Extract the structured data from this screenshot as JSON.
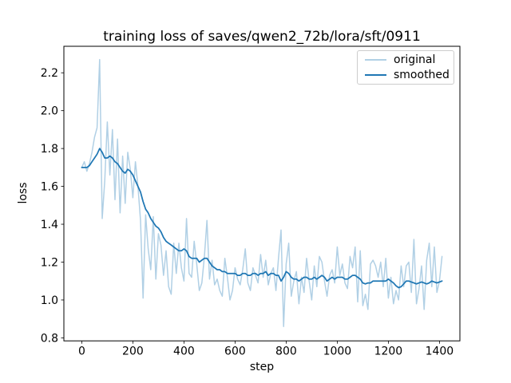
{
  "chart_data": {
    "type": "line",
    "title": "training loss of saves/qwen2_72b/lora/sft/0911",
    "xlabel": "step",
    "ylabel": "loss",
    "xlim": [
      -70,
      1480
    ],
    "ylim": [
      0.784,
      2.34
    ],
    "xticks": [
      0,
      200,
      400,
      600,
      800,
      1000,
      1200,
      1400
    ],
    "yticks": [
      0.8,
      1.0,
      1.2,
      1.4,
      1.6,
      1.8,
      2.0,
      2.2
    ],
    "grid": false,
    "legend_position": "upper right",
    "legend_border_color": "#cccccc",
    "axis_color": "#000000",
    "x": [
      0,
      10,
      20,
      30,
      40,
      50,
      60,
      70,
      80,
      90,
      100,
      110,
      120,
      130,
      140,
      150,
      160,
      170,
      180,
      190,
      200,
      210,
      220,
      230,
      240,
      250,
      260,
      270,
      280,
      290,
      300,
      310,
      320,
      330,
      340,
      350,
      360,
      370,
      380,
      390,
      400,
      410,
      420,
      430,
      440,
      450,
      460,
      470,
      480,
      490,
      500,
      510,
      520,
      530,
      540,
      550,
      560,
      570,
      580,
      590,
      600,
      610,
      620,
      630,
      640,
      650,
      660,
      670,
      680,
      690,
      700,
      710,
      720,
      730,
      740,
      750,
      760,
      770,
      780,
      790,
      800,
      810,
      820,
      830,
      840,
      850,
      860,
      870,
      880,
      890,
      900,
      910,
      920,
      930,
      940,
      950,
      960,
      970,
      980,
      990,
      1000,
      1010,
      1020,
      1030,
      1040,
      1050,
      1060,
      1070,
      1080,
      1090,
      1100,
      1110,
      1120,
      1130,
      1140,
      1150,
      1160,
      1170,
      1180,
      1190,
      1200,
      1210,
      1220,
      1230,
      1240,
      1250,
      1260,
      1270,
      1280,
      1290,
      1300,
      1310,
      1320,
      1330,
      1340,
      1350,
      1360,
      1370,
      1380,
      1390,
      1400,
      1410
    ],
    "series": [
      {
        "name": "original",
        "color": "#1f77b4",
        "alpha": 0.35,
        "linewidth": 1.5,
        "values": [
          1.7,
          1.73,
          1.68,
          1.72,
          1.78,
          1.86,
          1.91,
          2.27,
          1.43,
          1.63,
          1.94,
          1.66,
          1.9,
          1.53,
          1.85,
          1.46,
          1.76,
          1.51,
          1.78,
          1.69,
          1.54,
          1.73,
          1.6,
          1.42,
          1.01,
          1.45,
          1.27,
          1.16,
          1.44,
          1.11,
          1.35,
          1.29,
          1.13,
          1.26,
          1.07,
          1.03,
          1.3,
          1.14,
          1.3,
          1.17,
          1.1,
          1.43,
          1.14,
          1.12,
          1.31,
          1.19,
          1.05,
          1.09,
          1.23,
          1.42,
          1.11,
          1.21,
          1.08,
          1.11,
          1.05,
          1.02,
          1.22,
          1.12,
          1.0,
          1.05,
          1.17,
          1.11,
          1.08,
          1.16,
          1.27,
          1.09,
          1.05,
          1.17,
          1.13,
          1.09,
          1.24,
          1.12,
          1.21,
          1.08,
          1.14,
          1.17,
          1.05,
          1.22,
          1.37,
          0.86,
          1.19,
          1.3,
          1.02,
          1.1,
          1.15,
          0.98,
          1.12,
          1.04,
          1.22,
          1.1,
          1.0,
          1.18,
          1.07,
          1.23,
          1.2,
          1.1,
          1.02,
          1.13,
          1.16,
          1.09,
          1.28,
          1.13,
          1.19,
          1.09,
          1.06,
          1.23,
          1.17,
          1.28,
          0.99,
          1.26,
          0.97,
          1.03,
          0.95,
          1.19,
          1.21,
          1.18,
          1.12,
          1.2,
          1.07,
          1.22,
          1.01,
          1.12,
          0.98,
          1.05,
          1.0,
          1.18,
          1.07,
          1.18,
          1.2,
          1.04,
          1.32,
          0.98,
          1.06,
          1.18,
          0.95,
          1.21,
          1.3,
          1.07,
          1.28,
          1.04,
          1.1,
          1.23
        ]
      },
      {
        "name": "smoothed",
        "color": "#1f77b4",
        "alpha": 1.0,
        "linewidth": 1.75,
        "values": [
          1.7,
          1.7,
          1.7,
          1.71,
          1.73,
          1.75,
          1.77,
          1.8,
          1.78,
          1.75,
          1.75,
          1.76,
          1.75,
          1.73,
          1.72,
          1.7,
          1.68,
          1.67,
          1.69,
          1.68,
          1.66,
          1.63,
          1.6,
          1.57,
          1.52,
          1.48,
          1.46,
          1.43,
          1.41,
          1.39,
          1.38,
          1.36,
          1.33,
          1.31,
          1.3,
          1.29,
          1.28,
          1.27,
          1.26,
          1.26,
          1.27,
          1.26,
          1.23,
          1.22,
          1.22,
          1.22,
          1.2,
          1.21,
          1.22,
          1.22,
          1.2,
          1.18,
          1.17,
          1.16,
          1.16,
          1.15,
          1.15,
          1.14,
          1.14,
          1.14,
          1.14,
          1.13,
          1.13,
          1.14,
          1.14,
          1.13,
          1.13,
          1.14,
          1.14,
          1.13,
          1.14,
          1.14,
          1.15,
          1.13,
          1.14,
          1.14,
          1.13,
          1.13,
          1.1,
          1.12,
          1.15,
          1.14,
          1.12,
          1.11,
          1.11,
          1.1,
          1.11,
          1.12,
          1.12,
          1.11,
          1.11,
          1.12,
          1.11,
          1.12,
          1.13,
          1.12,
          1.1,
          1.11,
          1.12,
          1.11,
          1.12,
          1.12,
          1.12,
          1.11,
          1.11,
          1.12,
          1.13,
          1.13,
          1.12,
          1.11,
          1.09,
          1.085,
          1.09,
          1.09,
          1.1,
          1.1,
          1.1,
          1.1,
          1.1,
          1.1,
          1.11,
          1.1,
          1.09,
          1.075,
          1.065,
          1.07,
          1.085,
          1.1,
          1.1,
          1.095,
          1.09,
          1.085,
          1.09,
          1.095,
          1.09,
          1.085,
          1.09,
          1.1,
          1.095,
          1.09,
          1.095,
          1.1
        ]
      }
    ]
  }
}
